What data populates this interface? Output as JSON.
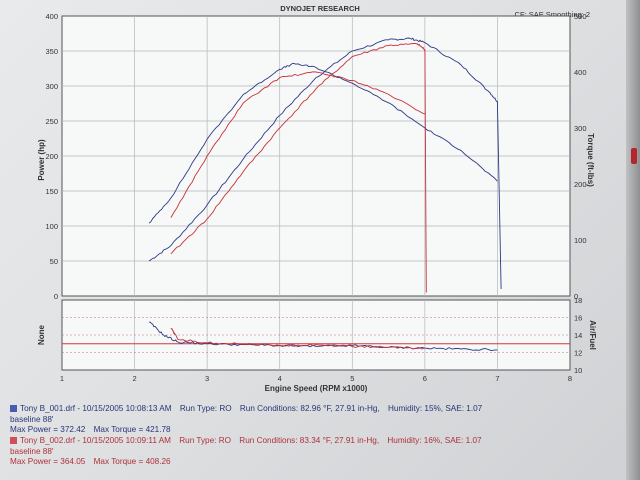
{
  "header": {
    "title": "DYNOJET RESEARCH",
    "settings": "CF: SAE  Smoothing: 2"
  },
  "colors": {
    "run1": "#2c3a86",
    "run2": "#c8303a",
    "grid": "#b4b6b8",
    "afr_target": "#d03a3a"
  },
  "chart_data": [
    {
      "type": "line",
      "xlabel": "Engine Speed (RPM x1000)",
      "ylabel": "Power (hp)",
      "y2label": "Torque (ft-lbs)",
      "xlim": [
        1,
        8
      ],
      "ylim": [
        0,
        400
      ],
      "y2lim": [
        0,
        500
      ],
      "x_ticks": [
        "1",
        "2",
        "3",
        "4",
        "5",
        "6",
        "7",
        "8"
      ],
      "y_ticks": [
        "0",
        "50",
        "100",
        "150",
        "200",
        "250",
        "300",
        "350",
        "400"
      ],
      "y2_ticks": [
        "0",
        "100",
        "200",
        "300",
        "400",
        "500"
      ],
      "grid": true,
      "series": [
        {
          "name": "Tony B_001.drf",
          "measure": "power",
          "color": "#2c3a86",
          "x": [
            2.2,
            2.5,
            3.0,
            3.5,
            4.0,
            4.5,
            5.0,
            5.5,
            5.8,
            6.0,
            6.5,
            6.9,
            7.0,
            7.05
          ],
          "y": [
            50,
            72,
            130,
            196,
            258,
            312,
            350,
            366,
            368,
            362,
            330,
            290,
            278,
            10
          ]
        },
        {
          "name": "Tony B_001.drf",
          "measure": "torque",
          "color": "#2c3a86",
          "x": [
            2.2,
            2.5,
            3.0,
            3.5,
            4.0,
            4.2,
            4.5,
            5.0,
            5.5,
            6.0,
            6.5,
            7.0
          ],
          "y": [
            130,
            175,
            280,
            360,
            405,
            415,
            408,
            380,
            345,
            300,
            260,
            205
          ]
        },
        {
          "name": "Tony B_002.drf",
          "measure": "power",
          "color": "#c8303a",
          "x": [
            2.5,
            3.0,
            3.5,
            4.0,
            4.5,
            5.0,
            5.5,
            5.9,
            6.0,
            6.02
          ],
          "y": [
            60,
            110,
            178,
            240,
            296,
            342,
            358,
            360,
            352,
            5
          ]
        },
        {
          "name": "Tony B_002.drf",
          "measure": "torque",
          "color": "#c8303a",
          "x": [
            2.5,
            3.0,
            3.5,
            4.0,
            4.5,
            5.0,
            5.5,
            6.0
          ],
          "y": [
            140,
            250,
            345,
            390,
            400,
            385,
            360,
            325
          ]
        }
      ]
    },
    {
      "type": "line",
      "xlabel": "Engine Speed (RPM x1000)",
      "ylabel": "None",
      "y2label": "Air/Fuel",
      "xlim": [
        1,
        8
      ],
      "y2lim": [
        10,
        18
      ],
      "y2_ticks": [
        "10",
        "12",
        "14",
        "16",
        "18"
      ],
      "reference": 13.0,
      "grid": true,
      "series": [
        {
          "name": "Tony B_001.drf",
          "measure": "air_fuel",
          "color": "#2c3a86",
          "x": [
            2.2,
            2.4,
            2.6,
            3.0,
            3.5,
            4.0,
            4.5,
            5.0,
            5.5,
            6.0,
            6.5,
            7.0
          ],
          "y": [
            15.5,
            14.0,
            13.2,
            13.0,
            12.9,
            12.8,
            12.7,
            12.8,
            12.6,
            12.5,
            12.4,
            12.3
          ]
        },
        {
          "name": "Tony B_002.drf",
          "measure": "air_fuel",
          "color": "#c8303a",
          "x": [
            2.5,
            2.6,
            3.0,
            3.5,
            4.0,
            4.5,
            5.0,
            5.5,
            6.0
          ],
          "y": [
            14.8,
            13.5,
            13.1,
            13.0,
            12.8,
            12.9,
            12.7,
            12.6,
            12.5
          ]
        }
      ]
    }
  ],
  "legend": {
    "run1": {
      "file": "Tony B_001.drf",
      "timestamp": "- 10/15/2005 10:08:13 AM",
      "run_type": "Run Type: RO",
      "conditions": "Run Conditions: 82.96 °F, 27.91 in-Hg,",
      "humidity": "Humidity:  15%,",
      "sae": "SAE: 1.07",
      "note": "baseline 88'",
      "max_power": "Max Power = 372.42",
      "max_torque": "Max Torque = 421.78"
    },
    "run2": {
      "file": "Tony B_002.drf",
      "timestamp": "- 10/15/2005 10:09:11 AM",
      "run_type": "Run Type: RO",
      "conditions": "Run Conditions: 83.34 °F, 27.91 in-Hg,",
      "humidity": "Humidity:  16%,",
      "sae": "SAE: 1.07",
      "note": "baseline 88'",
      "max_power": "Max Power = 364.05",
      "max_torque": "Max Torque = 408.26"
    }
  }
}
